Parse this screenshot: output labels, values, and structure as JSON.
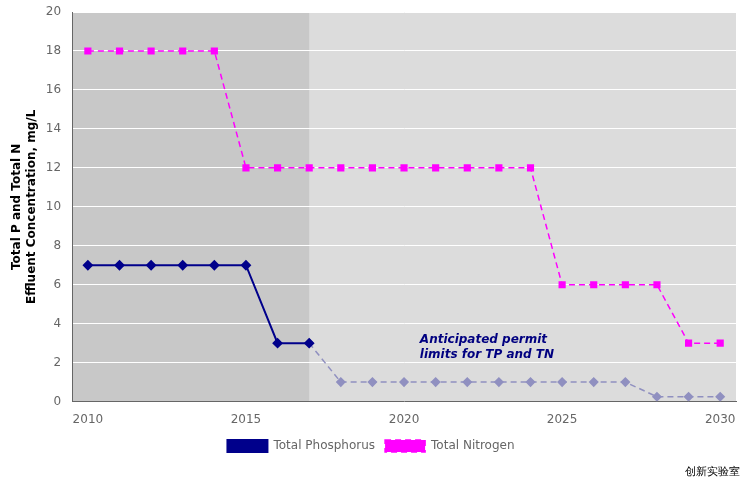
{
  "chart_data": {
    "type": "line",
    "ylabel": "Total P and Total N\nEffluent Concentration, mg/L",
    "xlim": [
      2009.5,
      2030.5
    ],
    "ylim": [
      0,
      20
    ],
    "xticks": [
      2010,
      2015,
      2020,
      2025,
      2030
    ],
    "yticks": [
      0,
      2,
      4,
      6,
      8,
      10,
      12,
      14,
      16,
      18,
      20
    ],
    "grid": "y",
    "legend": "bottom",
    "plot_background": "#c8c8c8",
    "shaded_region": {
      "from": 2017,
      "color": "#dcdcdc"
    },
    "series": [
      {
        "name": "Total Phosphorus",
        "color": "#00008B",
        "marker": "diamond",
        "line_style": "solid",
        "x": [
          2010,
          2011,
          2012,
          2013,
          2014,
          2015,
          2016,
          2017
        ],
        "values": [
          7,
          7,
          7,
          7,
          7,
          7,
          3,
          3
        ]
      },
      {
        "color": "#9090c0",
        "marker": "diamond",
        "line_style": "dashed",
        "x": [
          2017,
          2018,
          2019,
          2020,
          2021,
          2022,
          2023,
          2024,
          2025,
          2026,
          2027,
          2028,
          2029,
          2030
        ],
        "values": [
          3,
          1,
          1,
          1,
          1,
          1,
          1,
          1,
          1,
          1,
          1,
          0.25,
          0.25,
          0.25
        ]
      },
      {
        "name": "Total Nitrogen",
        "color": "#FF00FF",
        "marker": "square",
        "line_style": "dashed",
        "x": [
          2010,
          2011,
          2012,
          2013,
          2014,
          2015,
          2016,
          2017,
          2018,
          2019,
          2020,
          2021,
          2022,
          2023,
          2024,
          2025,
          2026,
          2027,
          2028,
          2029,
          2030
        ],
        "values": [
          18,
          18,
          18,
          18,
          18,
          12,
          12,
          12,
          12,
          12,
          12,
          12,
          12,
          12,
          12,
          6,
          6,
          6,
          6,
          3,
          3
        ]
      }
    ],
    "annotations": [
      {
        "text": "Anticipated permit\nlimits for TP and TN",
        "x": 2020.5,
        "y": 2.8,
        "color": "#000080"
      }
    ],
    "watermark": "创新实验室"
  }
}
